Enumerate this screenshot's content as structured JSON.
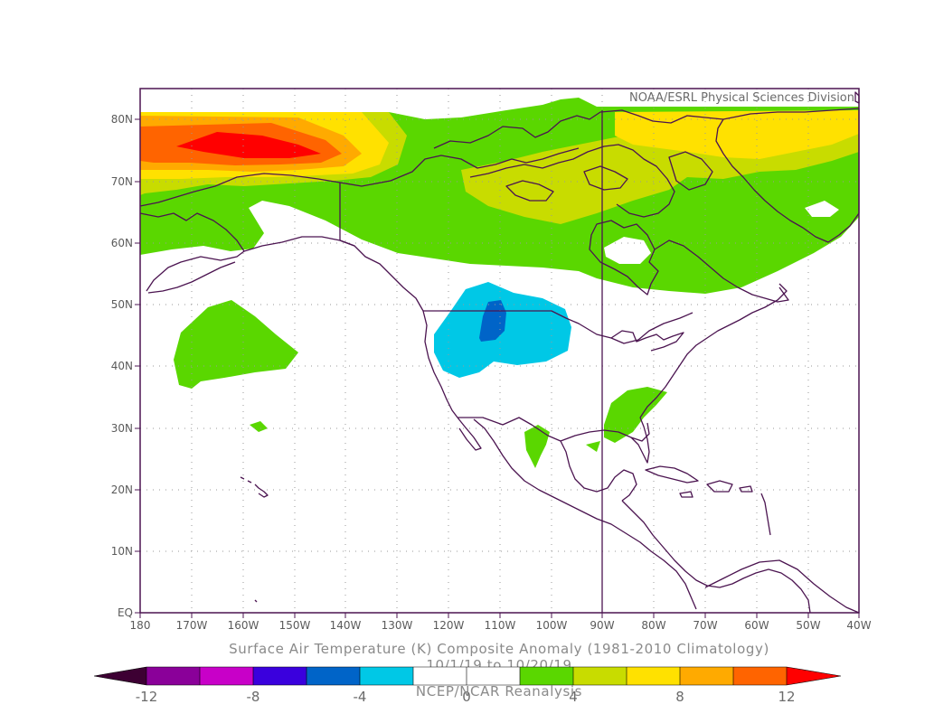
{
  "map": {
    "credit": "NOAA/ESRL Physical Sciences Division",
    "title": "Surface Air Temperature (K) Composite Anomaly (1981-2010 Climatology)",
    "date_range": "10/1/19  to 10/20/19",
    "source": "NCEP/NCAR Reanalysis",
    "x_ticks": [
      "180",
      "170W",
      "160W",
      "150W",
      "140W",
      "130W",
      "120W",
      "110W",
      "100W",
      "90W",
      "80W",
      "70W",
      "60W",
      "50W",
      "40W"
    ],
    "y_ticks": [
      "EQ",
      "10N",
      "20N",
      "30N",
      "40N",
      "50N",
      "60N",
      "70N",
      "80N"
    ],
    "lon_range": [
      -180,
      -40
    ],
    "lat_range": [
      0,
      85
    ],
    "frame_color": "#4b1450",
    "coastline_color": "#4b1450",
    "grid": "dotted"
  },
  "colorbar": {
    "colors": [
      "#3d0033",
      "#8a0099",
      "#c800c8",
      "#3a00dd",
      "#0064c8",
      "#00c8e6",
      "#ffffff",
      "#ffffff",
      "#5ad700",
      "#c8dc00",
      "#ffe100",
      "#ffaa00",
      "#ff6400",
      "#ff0000"
    ],
    "labels": [
      "-12",
      "-8",
      "-4",
      "0",
      "4",
      "8",
      "12"
    ],
    "label_values": [
      -12,
      -8,
      -4,
      0,
      4,
      8,
      12
    ]
  },
  "legend_colors": {
    "green": "#5ad700",
    "yellow_green": "#c8dc00",
    "yellow": "#ffe100",
    "orange": "#ffaa00",
    "dark_orange": "#ff6400",
    "red": "#ff0000",
    "cyan": "#00c8e6",
    "blue": "#0064c8"
  }
}
